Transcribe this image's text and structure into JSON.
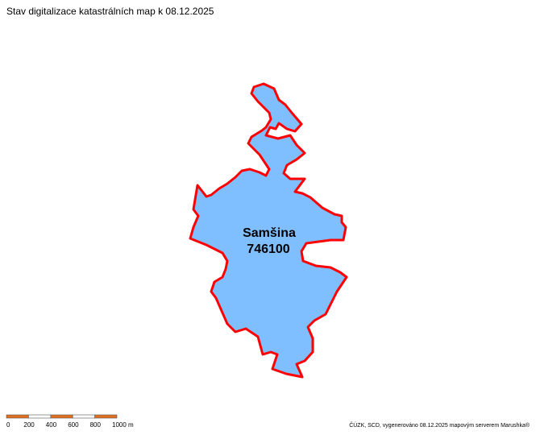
{
  "header": {
    "title": "Stav digitalizace katastrálních map k 08.12.2025"
  },
  "area": {
    "name": "Samšina",
    "code": "746100"
  },
  "scale_bar": {
    "labels": [
      "0",
      "200",
      "400",
      "600",
      "800",
      "1000 m"
    ]
  },
  "footer": {
    "credit": "ČÚZK, SCD, vygenerováno 08.12.2025 mapovým serverem Marushka®"
  }
}
